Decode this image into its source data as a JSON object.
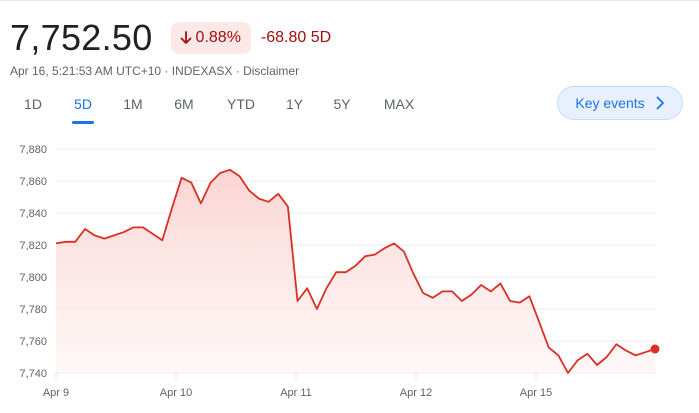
{
  "quote": {
    "price": "7,752.50",
    "change_percent": "0.88%",
    "change_abs": "-68.80",
    "period": "5D",
    "meta": "Apr 16, 5:21:53 AM UTC+10 · INDEXASX · Disclaimer",
    "direction": "down",
    "down_color": "#a50e0e"
  },
  "tabs": [
    {
      "label": "1D"
    },
    {
      "label": "5D",
      "active": true
    },
    {
      "label": "1M"
    },
    {
      "label": "6M"
    },
    {
      "label": "YTD"
    },
    {
      "label": "1Y"
    },
    {
      "label": "5Y"
    },
    {
      "label": "MAX"
    }
  ],
  "key_events": {
    "label": "Key events",
    "icon": "chevron-right-icon"
  },
  "chart_data": {
    "type": "area",
    "title": "",
    "xlabel": "",
    "ylabel": "",
    "ylim": [
      7740,
      7880
    ],
    "y_ticks": [
      "7,880",
      "7,860",
      "7,840",
      "7,820",
      "7,800",
      "7,780",
      "7,760",
      "7,740"
    ],
    "x_ticks": [
      "Apr 9",
      "Apr 10",
      "Apr 11",
      "Apr 12",
      "Apr 15"
    ],
    "grid": true,
    "line_color": "#d93025",
    "series": [
      {
        "values": [
          7821,
          7822,
          7822,
          7830,
          7826,
          7824,
          7826,
          7828,
          7831,
          7831,
          7827,
          7823,
          7843,
          7862,
          7859,
          7846,
          7859,
          7865,
          7867,
          7863,
          7854,
          7849,
          7847,
          7852,
          7844,
          7785,
          7793,
          7780,
          7793,
          7803,
          7803,
          7807,
          7813,
          7814,
          7818,
          7821,
          7816,
          7802,
          7790,
          7787,
          7791,
          7791,
          7785,
          7789,
          7795,
          7791,
          7796,
          7785,
          7784,
          7788,
          7772,
          7756,
          7751,
          7740,
          7748,
          7752,
          7745,
          7750,
          7758,
          7754,
          7751,
          7753,
          7755
        ]
      }
    ]
  }
}
